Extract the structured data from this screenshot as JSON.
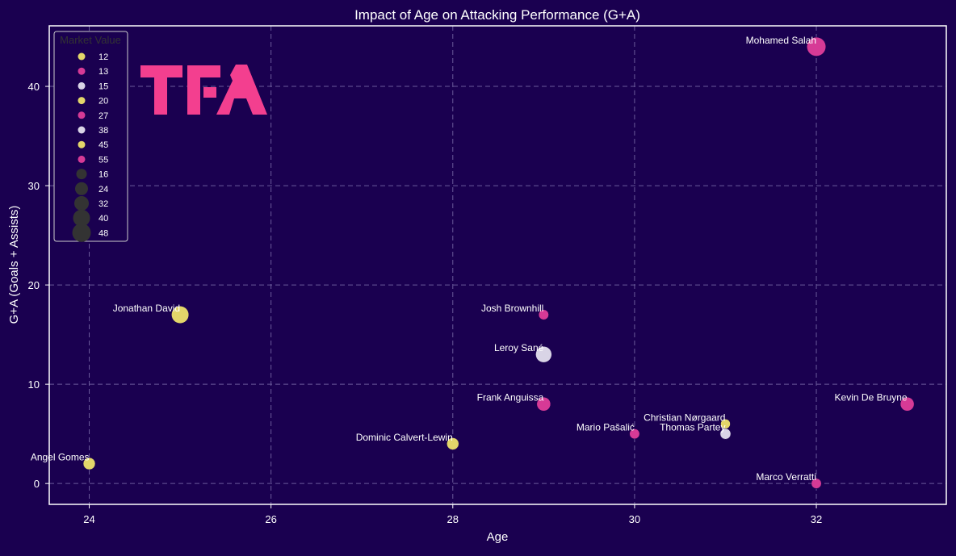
{
  "chart_data": {
    "type": "scatter",
    "title": "Impact of Age on Attacking Performance (G+A)",
    "xlabel": "Age",
    "ylabel": "G+A (Goals + Assists)",
    "xlim": [
      23.56,
      33.43
    ],
    "ylim": [
      -2.1,
      46.1
    ],
    "xticks": [
      24,
      26,
      28,
      30,
      32
    ],
    "yticks": [
      0,
      10,
      20,
      30,
      40
    ],
    "grid": true,
    "points": [
      {
        "name": "Mohamed Salah",
        "age": 32,
        "ga": 44,
        "market_value": 55,
        "color": "#d63a96"
      },
      {
        "name": "Jonathan David",
        "age": 25,
        "ga": 17,
        "market_value": 45,
        "color": "#e3d66a"
      },
      {
        "name": "Josh Brownhill",
        "age": 29,
        "ga": 17,
        "market_value": 13,
        "color": "#d63a96"
      },
      {
        "name": "Leroy Sané",
        "age": 29,
        "ga": 13,
        "market_value": 38,
        "color": "#d9d4e6"
      },
      {
        "name": "Frank Anguissa",
        "age": 29,
        "ga": 8,
        "market_value": 27,
        "color": "#d63a96"
      },
      {
        "name": "Kevin De Bruyne",
        "age": 33,
        "ga": 8,
        "market_value": 27,
        "color": "#d63a96"
      },
      {
        "name": "Christian Nørgaard",
        "age": 31,
        "ga": 6,
        "market_value": 12,
        "color": "#e3d66a"
      },
      {
        "name": "Mario Pašalić",
        "age": 30,
        "ga": 5,
        "market_value": 13,
        "color": "#d63a96"
      },
      {
        "name": "Thomas Partey",
        "age": 31,
        "ga": 5,
        "market_value": 15,
        "color": "#d9d4e6"
      },
      {
        "name": "Dominic Calvert-Lewin",
        "age": 28,
        "ga": 4,
        "market_value": 20,
        "color": "#e3d66a"
      },
      {
        "name": "Angel Gomes",
        "age": 24,
        "ga": 2,
        "market_value": 20,
        "color": "#e3d66a"
      },
      {
        "name": "Marco Verratti",
        "age": 32,
        "ga": 0,
        "market_value": 13,
        "color": "#d63a96"
      }
    ],
    "legend": {
      "title": "Market Value",
      "placement": "top-left",
      "hue_entries": [
        {
          "label": "12",
          "color": "#e3d66a"
        },
        {
          "label": "13",
          "color": "#d63a96"
        },
        {
          "label": "15",
          "color": "#d9d4e6"
        },
        {
          "label": "20",
          "color": "#e3d66a"
        },
        {
          "label": "27",
          "color": "#d63a96"
        },
        {
          "label": "38",
          "color": "#d9d4e6"
        },
        {
          "label": "45",
          "color": "#e3d66a"
        },
        {
          "label": "55",
          "color": "#d63a96"
        }
      ],
      "size_entries": [
        "16",
        "24",
        "32",
        "40",
        "48"
      ]
    }
  },
  "logo": {
    "text": "TFA",
    "color": "#f33f8f"
  }
}
